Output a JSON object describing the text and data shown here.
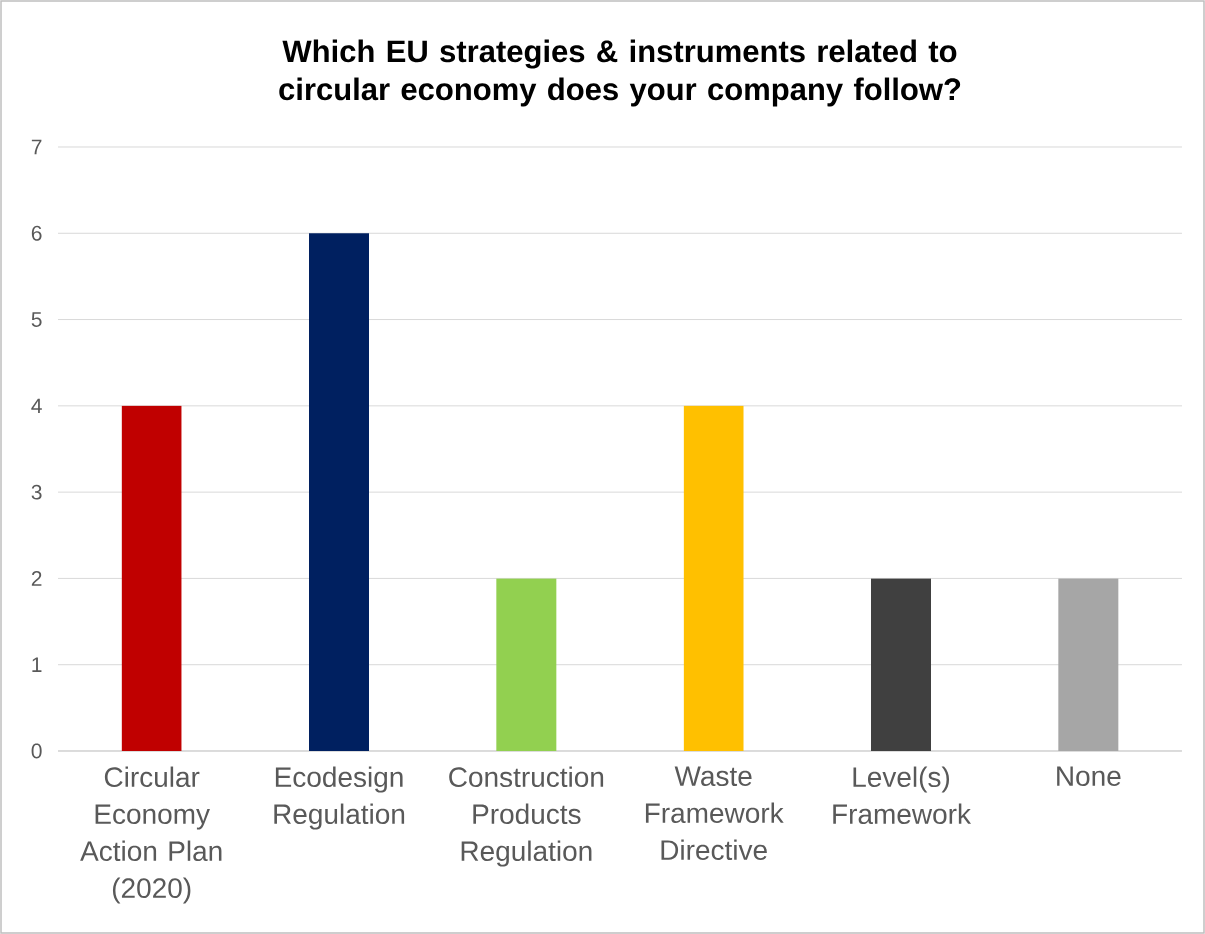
{
  "chart_data": {
    "type": "bar",
    "title": "Which EU strategies & instruments related to circular economy does your company follow?",
    "categories": [
      "Circular Economy Action Plan (2020)",
      "Ecodesign Regulation",
      "Construction Products Regulation",
      "Waste Framework Directive",
      "Level(s) Framework",
      "None"
    ],
    "values": [
      4,
      6,
      2,
      4,
      2,
      2
    ],
    "colors": [
      "#c00000",
      "#002060",
      "#92d050",
      "#ffc000",
      "#404040",
      "#a6a6a6"
    ],
    "ylim": [
      0,
      7
    ],
    "yticks": [
      0,
      1,
      2,
      3,
      4,
      5,
      6,
      7
    ],
    "grid": "y"
  }
}
